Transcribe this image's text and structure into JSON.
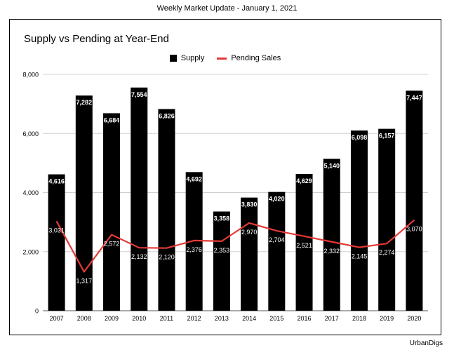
{
  "header": {
    "text": "Weekly Market Update - January 1, 2021"
  },
  "footer": {
    "text": "UrbanDigs"
  },
  "colors": {
    "supply": "#000000",
    "pending": "#e53935",
    "grid": "#d0d0d0"
  },
  "chart_data": {
    "type": "bar",
    "title": "Supply vs Pending at Year-End",
    "xlabel": "",
    "ylabel": "",
    "ylim": [
      0,
      8000
    ],
    "yticks": [
      "0",
      "2,000",
      "4,000",
      "6,000",
      "8,000"
    ],
    "grid": true,
    "legend": "top",
    "categories": [
      "2007",
      "2008",
      "2009",
      "2010",
      "2011",
      "2012",
      "2013",
      "2014",
      "2015",
      "2016",
      "2017",
      "2018",
      "2019",
      "2020"
    ],
    "series": [
      {
        "name": "Supply",
        "type": "bar",
        "values": [
          4616,
          7282,
          6684,
          7554,
          6826,
          4692,
          3358,
          3830,
          4020,
          4629,
          5140,
          6098,
          6157,
          7447
        ],
        "labels": [
          "4,616",
          "7,282",
          "6,684",
          "7,554",
          "6,826",
          "4,692",
          "3,358",
          "3,830",
          "4,020",
          "4,629",
          "5,140",
          "6,098",
          "6,157",
          "7,447"
        ]
      },
      {
        "name": "Pending Sales",
        "type": "line",
        "values": [
          3031,
          1317,
          2572,
          2132,
          2120,
          2376,
          2353,
          2970,
          2704,
          2521,
          2332,
          2145,
          2274,
          3070
        ],
        "labels": [
          "3,031",
          "1,317",
          "2,572",
          "2,132",
          "2,120",
          "2,376",
          "2,353",
          "2,970",
          "2,704",
          "2,521",
          "2,332",
          "2,145",
          "2,274",
          "3,070"
        ]
      }
    ]
  }
}
